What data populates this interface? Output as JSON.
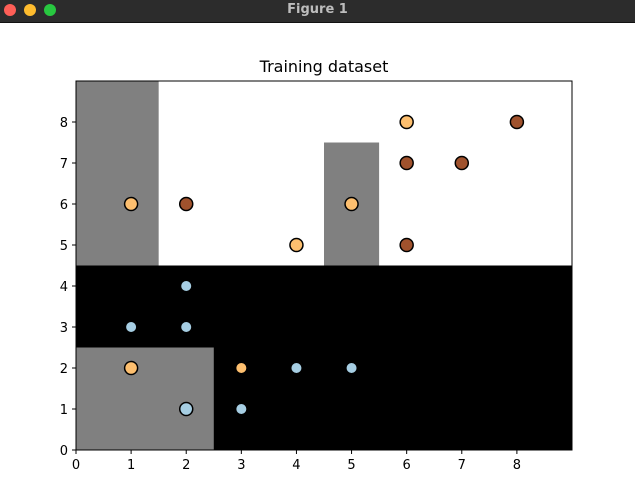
{
  "window": {
    "title": "Figure 1"
  },
  "chart_data": {
    "type": "scatter",
    "title": "Training dataset",
    "xlabel": "",
    "ylabel": "",
    "xlim": [
      0,
      9
    ],
    "ylim": [
      0,
      9
    ],
    "xticks": [
      0,
      1,
      2,
      3,
      4,
      5,
      6,
      7,
      8
    ],
    "yticks": [
      0,
      1,
      2,
      3,
      4,
      5,
      6,
      7,
      8
    ],
    "grid": false,
    "decision_regions": [
      {
        "name": "black-region",
        "color": "#000000",
        "x": [
          0,
          9
        ],
        "y": [
          0,
          4.5
        ]
      },
      {
        "name": "gray-region-left",
        "color": "#808080",
        "x": [
          0,
          1.5
        ],
        "y": [
          4.5,
          9
        ]
      },
      {
        "name": "gray-region-middle",
        "color": "#808080",
        "x": [
          4.5,
          5.5
        ],
        "y": [
          4.5,
          7.5
        ]
      },
      {
        "name": "gray-region-bottom",
        "color": "#808080",
        "x": [
          0,
          2.5
        ],
        "y": [
          0,
          2.5
        ]
      }
    ],
    "series": [
      {
        "name": "class-light-blue",
        "color": "#a6cee3",
        "points": [
          [
            1,
            3
          ],
          [
            2,
            3
          ],
          [
            2,
            4
          ],
          [
            3,
            1
          ],
          [
            4,
            2
          ],
          [
            5,
            2
          ]
        ]
      },
      {
        "name": "class-light-blue-outlined",
        "color": "#a6cee3",
        "edgecolor": "#000000",
        "points": [
          [
            2,
            1
          ]
        ]
      },
      {
        "name": "class-orange",
        "color": "#fdbf6f",
        "points": [
          [
            3,
            2
          ]
        ]
      },
      {
        "name": "class-orange-outlined",
        "color": "#fdbf6f",
        "edgecolor": "#000000",
        "points": [
          [
            1,
            2
          ],
          [
            1,
            6
          ],
          [
            4,
            5
          ],
          [
            5,
            6
          ],
          [
            6,
            8
          ]
        ]
      },
      {
        "name": "class-brown-outlined",
        "color": "#a0522d",
        "edgecolor": "#000000",
        "points": [
          [
            2,
            6
          ],
          [
            6,
            5
          ],
          [
            6,
            7
          ],
          [
            7,
            7
          ],
          [
            8,
            8
          ]
        ]
      }
    ]
  }
}
